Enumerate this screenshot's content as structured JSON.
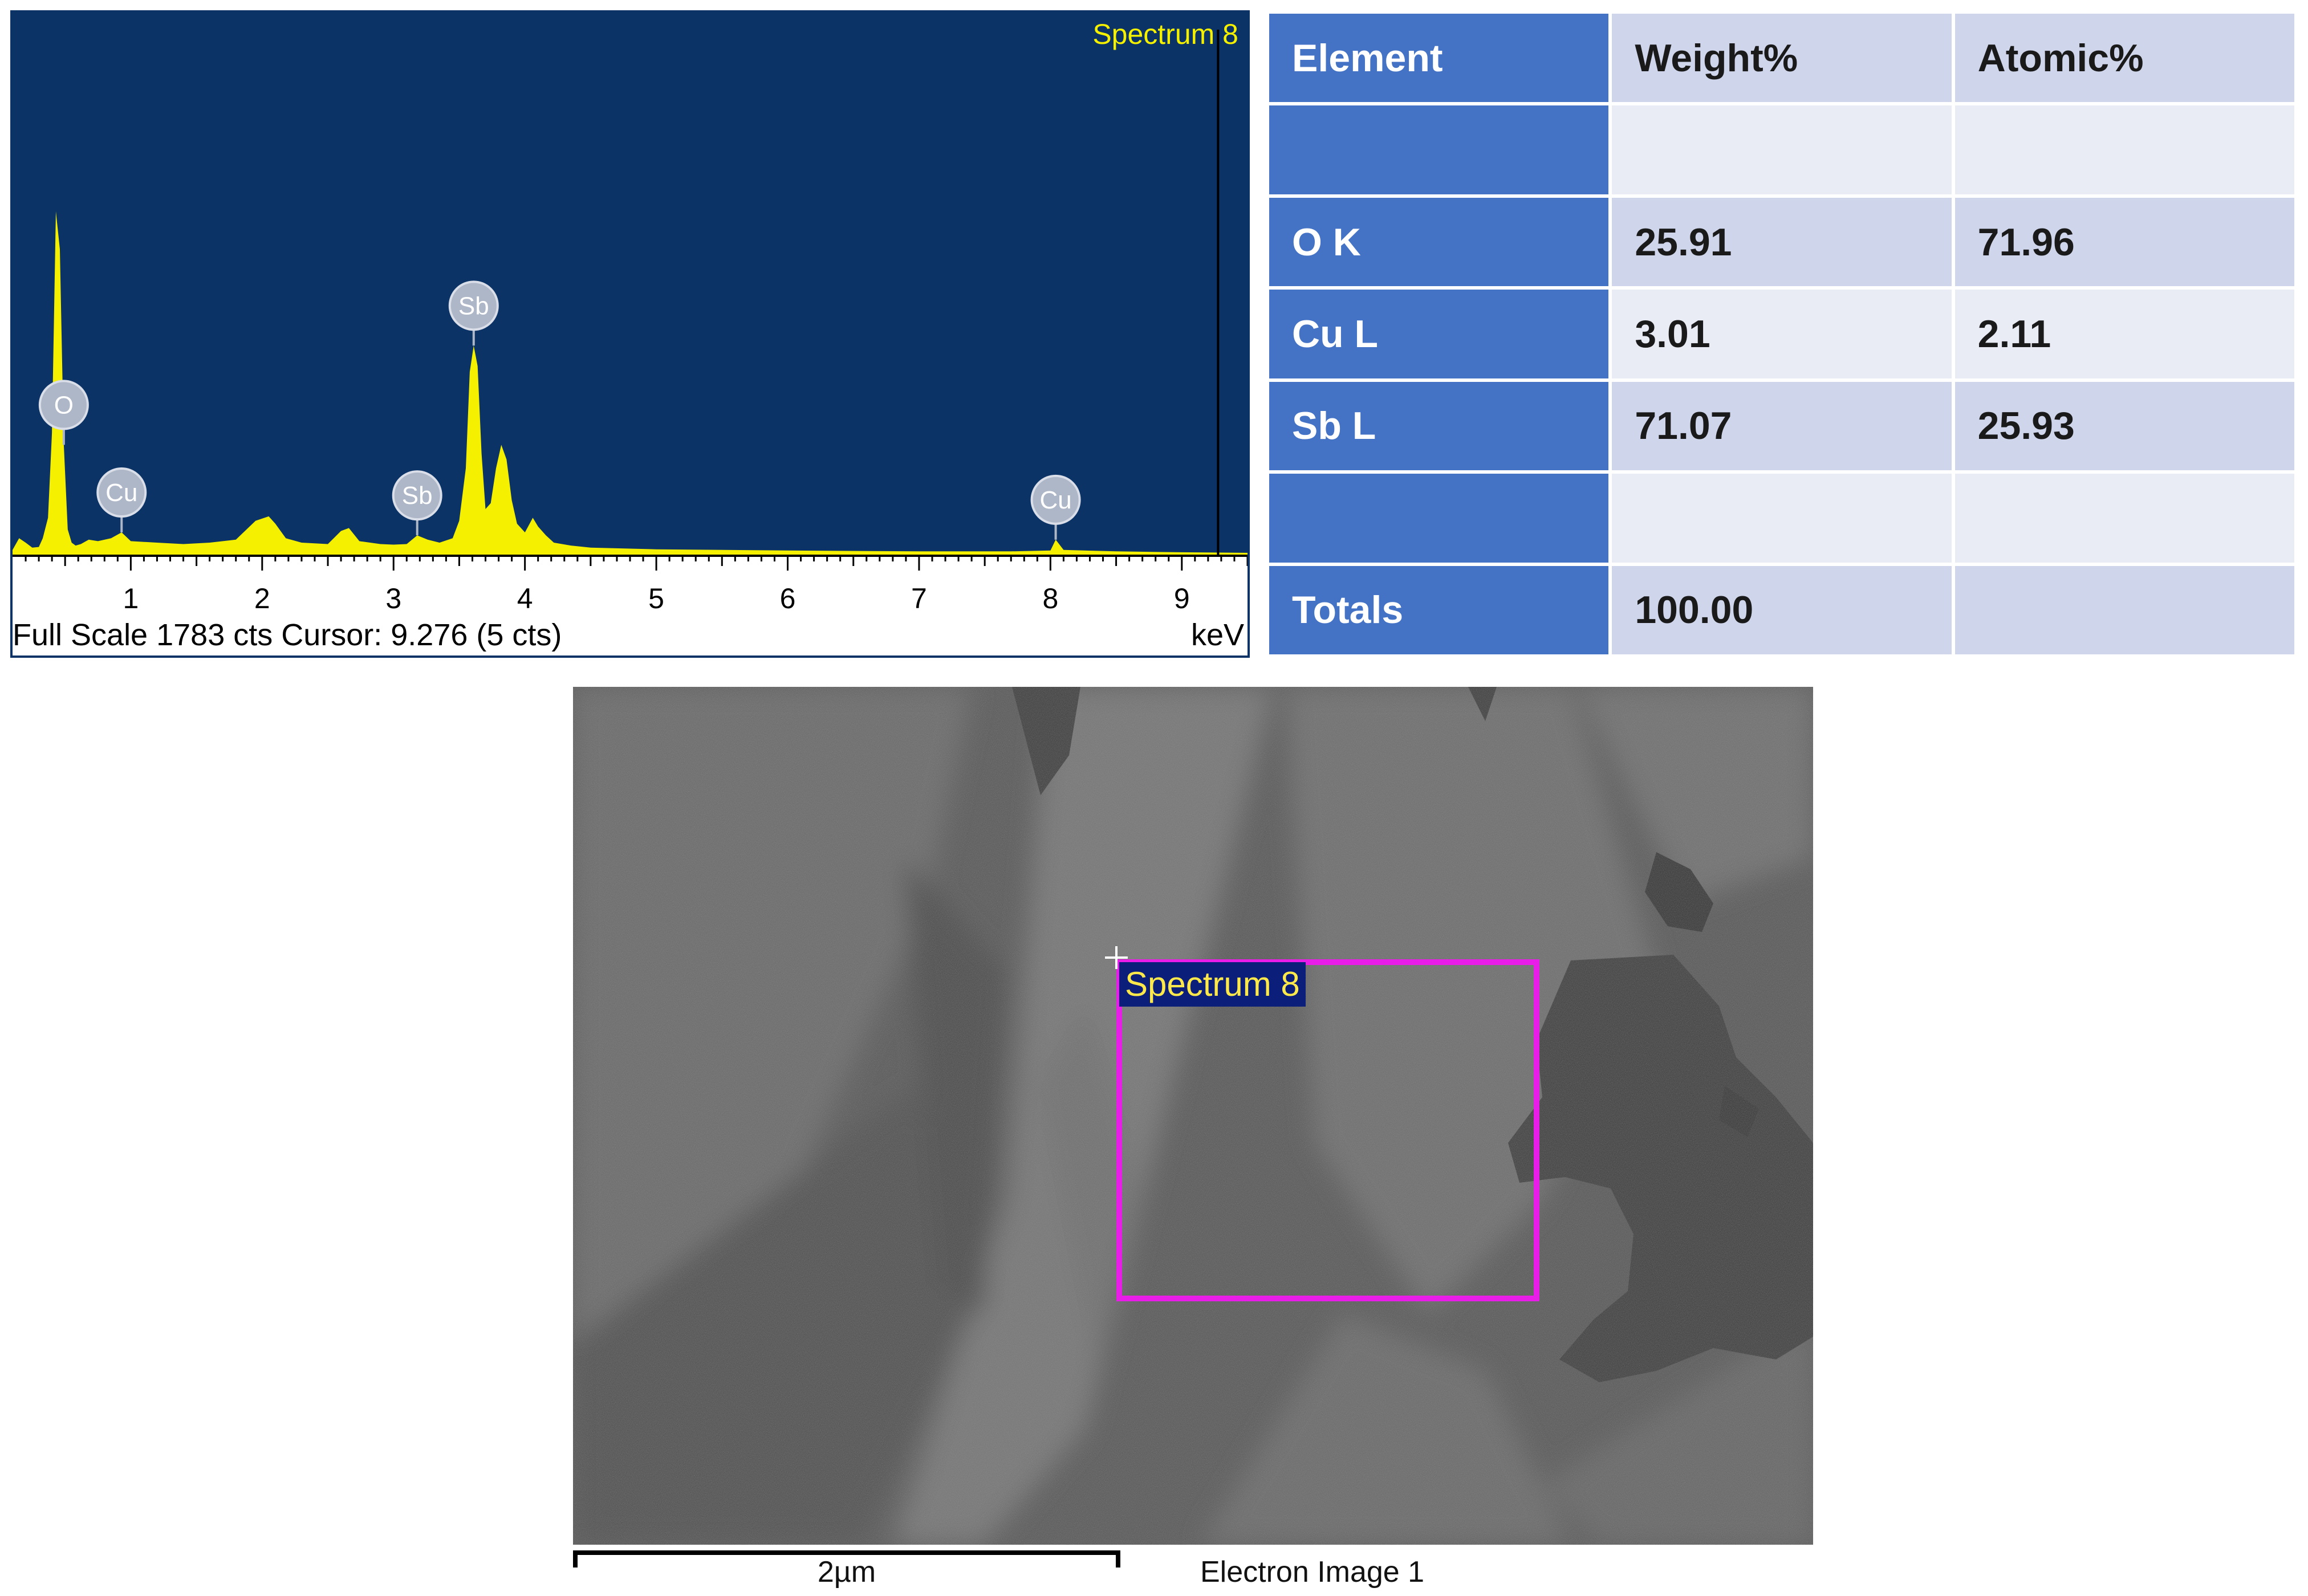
{
  "chart_data": {
    "type": "line",
    "title": "Spectrum 8",
    "x_unit": "keV",
    "xlim": [
      0.1,
      9.5
    ],
    "ylim": [
      0,
      1783
    ],
    "x_ticks": [
      "1",
      "2",
      "3",
      "4",
      "5",
      "6",
      "7",
      "8",
      "9"
    ],
    "footer": "Full Scale 1783 cts Cursor: 9.276  (5 cts)",
    "cursor_keV": 9.276,
    "series": [
      {
        "x": [
          0.1,
          0.15,
          0.2,
          0.25,
          0.3,
          0.33,
          0.37,
          0.4,
          0.43,
          0.46,
          0.49,
          0.52,
          0.55,
          0.58,
          0.62,
          0.68,
          0.75,
          0.85,
          0.93,
          1.0,
          1.2,
          1.4,
          1.6,
          1.8,
          1.95,
          2.05,
          2.1,
          2.18,
          2.3,
          2.5,
          2.6,
          2.66,
          2.74,
          2.9,
          3.0,
          3.1,
          3.18,
          3.26,
          3.35,
          3.45,
          3.5,
          3.55,
          3.58,
          3.61,
          3.64,
          3.67,
          3.7,
          3.74,
          3.78,
          3.82,
          3.86,
          3.9,
          3.94,
          4.0,
          4.06,
          4.1,
          4.16,
          4.22,
          4.35,
          4.5,
          5.0,
          6.0,
          7.0,
          7.7,
          8.0,
          8.04,
          8.1,
          8.5,
          9.0,
          9.5
        ],
        "y": [
          20,
          60,
          45,
          28,
          30,
          60,
          130,
          420,
          1180,
          1050,
          380,
          90,
          45,
          35,
          40,
          55,
          50,
          60,
          80,
          50,
          45,
          40,
          45,
          55,
          120,
          135,
          110,
          60,
          45,
          40,
          85,
          95,
          50,
          40,
          38,
          40,
          70,
          55,
          45,
          60,
          120,
          300,
          630,
          720,
          650,
          350,
          160,
          180,
          300,
          380,
          330,
          190,
          110,
          80,
          130,
          100,
          70,
          45,
          35,
          28,
          22,
          18,
          15,
          15,
          18,
          55,
          20,
          15,
          12,
          10
        ]
      }
    ],
    "peak_labels": [
      {
        "text": "O",
        "x": 0.49
      },
      {
        "text": "Cu",
        "x": 0.93
      },
      {
        "text": "Sb",
        "x": 3.18
      },
      {
        "text": "Sb",
        "x": 3.61
      },
      {
        "text": "Cu",
        "x": 8.04
      }
    ],
    "colors": {
      "background": "#0b3366",
      "fill": "#f4f000",
      "label_badge": "#aeb7c8"
    }
  },
  "table": {
    "headers": {
      "element": "Element",
      "weight": "Weight%",
      "atomic": "Atomic%"
    },
    "rows": [
      {
        "element": "",
        "weight": "",
        "atomic": ""
      },
      {
        "element": "O K",
        "weight": "25.91",
        "atomic": "71.96"
      },
      {
        "element": "Cu L",
        "weight": "3.01",
        "atomic": "2.11"
      },
      {
        "element": "Sb L",
        "weight": "71.07",
        "atomic": "25.93"
      },
      {
        "element": "",
        "weight": "",
        "atomic": ""
      },
      {
        "element": "Totals",
        "weight": "100.00",
        "atomic": ""
      }
    ],
    "colors": {
      "element_column": "#4472c4",
      "value_cells": "#cfd5ea"
    }
  },
  "electron_image": {
    "region_label": "Spectrum 8",
    "scale_bar_label": "2µm",
    "caption": "Electron Image 1",
    "colors": {
      "region_box": "#e81ee8",
      "tag_bg": "#0b1e7a",
      "tag_text": "#ffe94a"
    }
  }
}
